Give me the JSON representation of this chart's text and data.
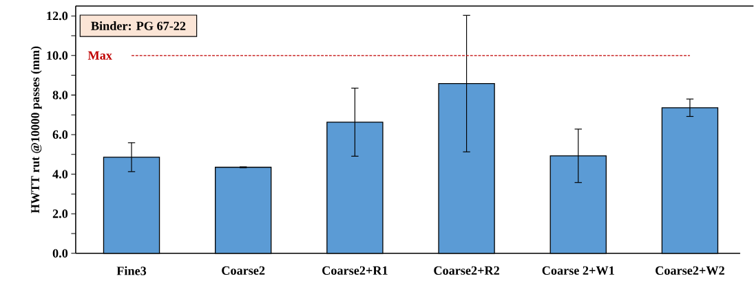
{
  "chart_data": {
    "type": "bar",
    "ylabel": "HWTT rut @10000 passes (mm)",
    "categories": [
      "Fine3",
      "Coarse2",
      "Coarse2+R1",
      "Coarse2+R2",
      "Coarse 2+W1",
      "Coarse2+W2"
    ],
    "values": [
      4.86,
      4.35,
      6.63,
      8.58,
      4.93,
      7.36
    ],
    "errors": [
      0.73,
      0.02,
      1.72,
      3.45,
      1.35,
      0.44
    ],
    "color": "#5b9bd5",
    "ylim": [
      0,
      12.5
    ],
    "yticks": [
      {
        "value": 0,
        "label": "0.0"
      },
      {
        "value": 2,
        "label": "2.0"
      },
      {
        "value": 4,
        "label": "4.0"
      },
      {
        "value": 6,
        "label": "6.0"
      },
      {
        "value": 8,
        "label": "8.0"
      },
      {
        "value": 10,
        "label": "10.0"
      },
      {
        "value": 12,
        "label": "12.0"
      }
    ],
    "ref_lines": [
      {
        "axis": "y",
        "value": 10,
        "label": "Max",
        "color": "#c00000",
        "line_style": "dashed"
      }
    ],
    "annotations": [
      "Binder: PG 67-22"
    ]
  }
}
